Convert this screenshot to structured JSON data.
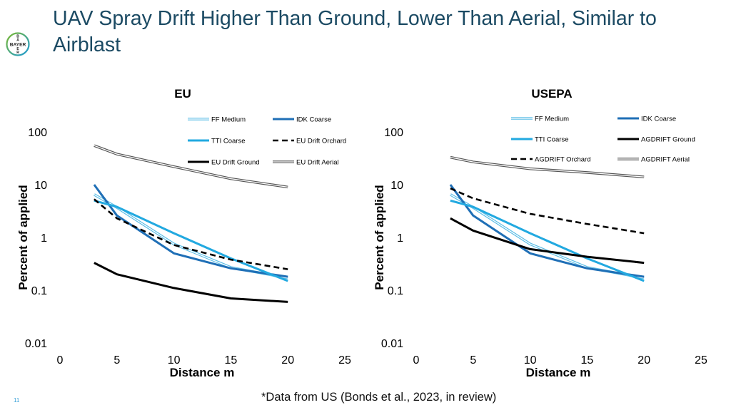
{
  "slide": {
    "title": "UAV Spray Drift Higher Than Ground, Lower Than Aerial, Similar to Airblast",
    "logo_text": "BAYER",
    "footnote": "*Data from US (Bonds et al., 2023, in review)",
    "page_number": "11"
  },
  "colors": {
    "title": "#1b4a63",
    "ff_medium": "#5bbde6",
    "idk_coarse": "#1f6fb6",
    "tti_coarse": "#22a9e0",
    "black": "#000000",
    "aerial": "#555555",
    "logo_green": "#7cb82f",
    "logo_blue": "#1a9ad6"
  },
  "chart_data": [
    {
      "type": "line",
      "title": "EU",
      "xlabel": "Distance m",
      "ylabel": "Percent of applied",
      "xlim": [
        0,
        25
      ],
      "ylim": [
        0.01,
        100
      ],
      "yscale": "log",
      "xticks": [
        "0",
        "5",
        "10",
        "15",
        "20",
        "25"
      ],
      "yticks": [
        "0.01",
        "0.1",
        "1",
        "10",
        "100"
      ],
      "grid": false,
      "legend": "top-right",
      "series": [
        {
          "name": "FF Medium",
          "style": "double",
          "color": "#5bbde6",
          "x": [
            3,
            5,
            10,
            15,
            20
          ],
          "y": [
            6.5,
            3.7,
            0.75,
            0.27,
            0.17
          ]
        },
        {
          "name": "IDK Coarse",
          "style": "solid",
          "color": "#1f6fb6",
          "x": [
            3,
            5,
            10,
            15,
            20
          ],
          "y": [
            10.0,
            2.6,
            0.5,
            0.26,
            0.18
          ]
        },
        {
          "name": "TTI Coarse",
          "style": "solid",
          "color": "#22a9e0",
          "x": [
            3,
            5,
            10,
            15,
            20
          ],
          "y": [
            5.0,
            3.8,
            1.2,
            0.4,
            0.15
          ]
        },
        {
          "name": "EU Drift Orchard",
          "style": "dashed",
          "color": "#000000",
          "x": [
            3,
            5,
            10,
            15,
            20
          ],
          "y": [
            5.3,
            2.3,
            0.72,
            0.38,
            0.25
          ]
        },
        {
          "name": "EU Drift Ground",
          "style": "solid",
          "color": "#000000",
          "x": [
            3,
            5,
            10,
            15,
            20
          ],
          "y": [
            0.33,
            0.2,
            0.11,
            0.07,
            0.06
          ]
        },
        {
          "name": "EU Drift Aerial",
          "style": "double",
          "color": "#555555",
          "x": [
            3,
            5,
            10,
            15,
            20
          ],
          "y": [
            55,
            38,
            22,
            13,
            9
          ]
        }
      ]
    },
    {
      "type": "line",
      "title": "USEPA",
      "xlabel": "Distance m",
      "ylabel": "Percent of applied",
      "xlim": [
        0,
        25
      ],
      "ylim": [
        0.01,
        100
      ],
      "yscale": "log",
      "xticks": [
        "0",
        "5",
        "10",
        "15",
        "20",
        "25"
      ],
      "yticks": [
        "0.01",
        "0.1",
        "1",
        "10",
        "100"
      ],
      "grid": false,
      "legend": "top-right",
      "series": [
        {
          "name": "FF Medium",
          "style": "double",
          "color": "#5bbde6",
          "x": [
            3,
            5,
            10,
            15,
            20
          ],
          "y": [
            6.5,
            3.7,
            0.75,
            0.27,
            0.17
          ]
        },
        {
          "name": "IDK Coarse",
          "style": "solid",
          "color": "#1f6fb6",
          "x": [
            3,
            5,
            10,
            15,
            20
          ],
          "y": [
            10.0,
            2.6,
            0.5,
            0.26,
            0.18
          ]
        },
        {
          "name": "TTI Coarse",
          "style": "solid",
          "color": "#22a9e0",
          "x": [
            3,
            5,
            10,
            15,
            20
          ],
          "y": [
            5.0,
            3.8,
            1.2,
            0.4,
            0.15
          ]
        },
        {
          "name": "AGDRIFT Ground",
          "style": "solid",
          "color": "#000000",
          "x": [
            3,
            5,
            10,
            15,
            20
          ],
          "y": [
            2.3,
            1.35,
            0.6,
            0.43,
            0.33
          ]
        },
        {
          "name": "AGDRIFT Orchard",
          "style": "dashed",
          "color": "#000000",
          "x": [
            3,
            5,
            10,
            15,
            20
          ],
          "y": [
            8.5,
            5.5,
            2.8,
            1.8,
            1.2
          ]
        },
        {
          "name": "AGDRIFT Aerial",
          "style": "double",
          "color": "#555555",
          "x": [
            3,
            5,
            10,
            15,
            20
          ],
          "y": [
            33,
            27,
            20,
            17,
            14
          ]
        }
      ]
    }
  ]
}
